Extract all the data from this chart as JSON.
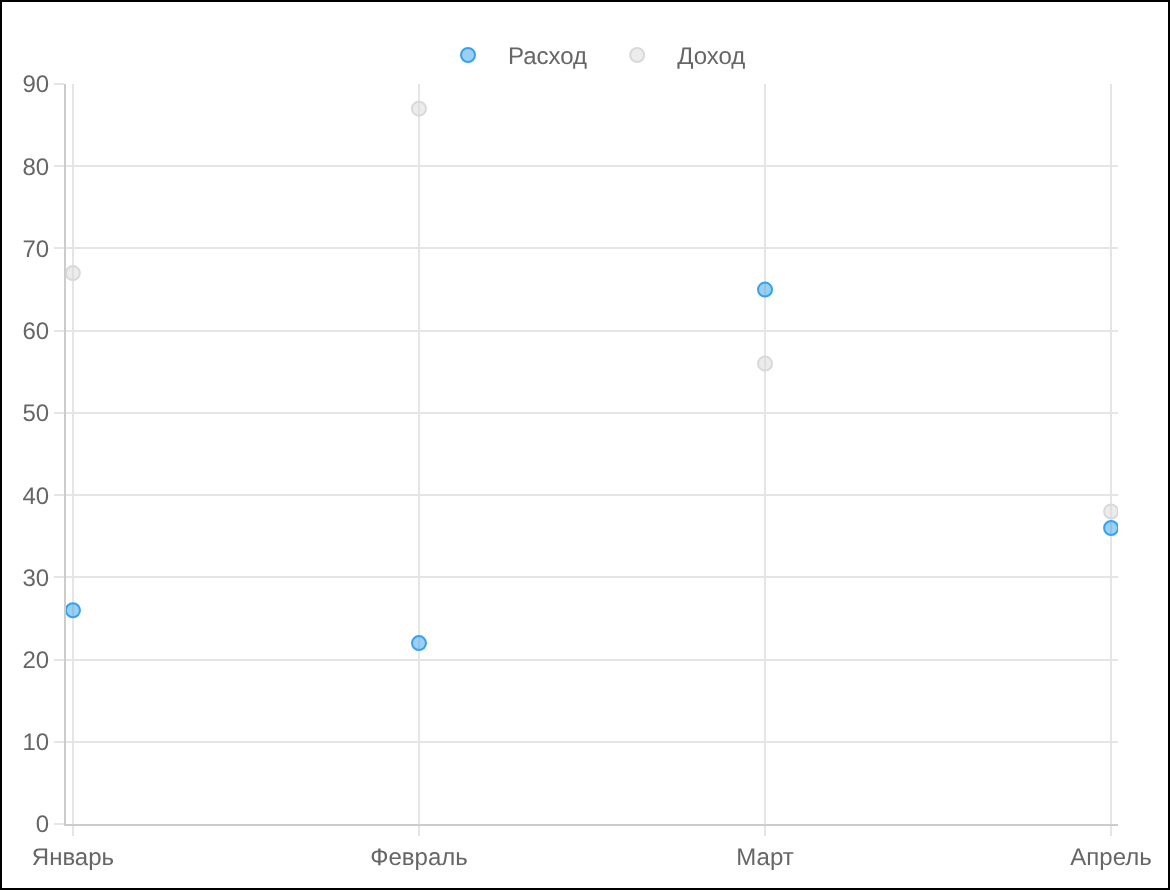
{
  "chart_data": {
    "type": "scatter",
    "categories": [
      "Январь",
      "Февраль",
      "Март",
      "Апрель"
    ],
    "series": [
      {
        "name": "Расход",
        "color": "#36a2eb",
        "values": [
          26,
          22,
          65,
          36
        ]
      },
      {
        "name": "Доход",
        "color": "#d9d9d9",
        "values": [
          67,
          87,
          56,
          38
        ]
      }
    ],
    "ylim": [
      0,
      90
    ],
    "yticks": [
      0,
      10,
      20,
      30,
      40,
      50,
      60,
      70,
      80,
      90
    ],
    "grid": true,
    "legend": "top",
    "marker": "circle"
  }
}
